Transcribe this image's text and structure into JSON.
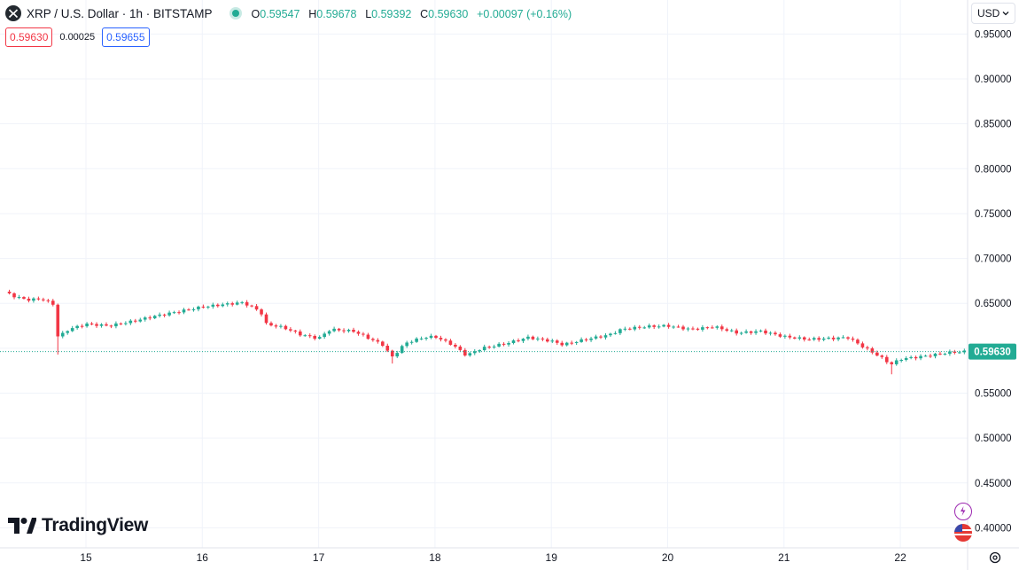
{
  "header": {
    "title": "XRP / U.S. Dollar · 1h · BITSTAMP",
    "o_label": "O",
    "o_value": "0.59547",
    "h_label": "H",
    "h_value": "0.59678",
    "l_label": "L",
    "l_value": "0.59392",
    "c_label": "C",
    "c_value": "0.59630",
    "change": "+0.00097 (+0.16%)",
    "sell_price": "0.59630",
    "spread": "0.00025",
    "buy_price": "0.59655"
  },
  "currency_selector": {
    "value": "USD"
  },
  "branding": {
    "logo_text": "TradingView"
  },
  "colors": {
    "up": "#22ab94",
    "down": "#f23645",
    "grid": "#f0f3fa",
    "price_line": "#22ab94"
  },
  "chart_data": {
    "type": "candlestick",
    "title": "XRP / U.S. Dollar · 1h · BITSTAMP",
    "x_tick_labels": [
      "15",
      "16",
      "17",
      "18",
      "19",
      "20",
      "21",
      "22"
    ],
    "y_tick_labels": [
      "0.95000",
      "0.90000",
      "0.85000",
      "0.80000",
      "0.75000",
      "0.70000",
      "0.65000",
      "0.60000",
      "0.55000",
      "0.50000",
      "0.45000",
      "0.40000"
    ],
    "ylim": [
      0.38,
      0.98
    ],
    "last_price": 0.5963,
    "last_price_label": "0.59630",
    "grid": true,
    "price_path": [
      [
        14.3,
        0.663
      ],
      [
        14.4,
        0.657
      ],
      [
        14.5,
        0.654
      ],
      [
        14.62,
        0.655
      ],
      [
        14.72,
        0.649
      ],
      [
        14.76,
        0.612
      ],
      [
        14.85,
        0.621
      ],
      [
        15.0,
        0.627
      ],
      [
        15.2,
        0.625
      ],
      [
        15.4,
        0.63
      ],
      [
        15.6,
        0.636
      ],
      [
        15.8,
        0.641
      ],
      [
        16.0,
        0.646
      ],
      [
        16.2,
        0.649
      ],
      [
        16.35,
        0.651
      ],
      [
        16.5,
        0.641
      ],
      [
        16.55,
        0.627
      ],
      [
        16.7,
        0.623
      ],
      [
        16.85,
        0.615
      ],
      [
        17.0,
        0.611
      ],
      [
        17.1,
        0.621
      ],
      [
        17.3,
        0.619
      ],
      [
        17.45,
        0.61
      ],
      [
        17.55,
        0.604
      ],
      [
        17.63,
        0.59
      ],
      [
        17.75,
        0.606
      ],
      [
        17.9,
        0.612
      ],
      [
        18.0,
        0.613
      ],
      [
        18.15,
        0.604
      ],
      [
        18.27,
        0.592
      ],
      [
        18.4,
        0.6
      ],
      [
        18.6,
        0.605
      ],
      [
        18.8,
        0.612
      ],
      [
        19.0,
        0.608
      ],
      [
        19.1,
        0.604
      ],
      [
        19.3,
        0.61
      ],
      [
        19.5,
        0.615
      ],
      [
        19.6,
        0.621
      ],
      [
        19.8,
        0.624
      ],
      [
        20.0,
        0.625
      ],
      [
        20.2,
        0.621
      ],
      [
        20.4,
        0.624
      ],
      [
        20.6,
        0.617
      ],
      [
        20.8,
        0.619
      ],
      [
        21.0,
        0.613
      ],
      [
        21.2,
        0.61
      ],
      [
        21.4,
        0.611
      ],
      [
        21.55,
        0.612
      ],
      [
        21.7,
        0.6
      ],
      [
        21.82,
        0.591
      ],
      [
        21.92,
        0.582
      ],
      [
        22.0,
        0.588
      ],
      [
        22.2,
        0.591
      ],
      [
        22.4,
        0.595
      ],
      [
        22.55,
        0.5963
      ]
    ],
    "spikes": [
      {
        "x": 14.76,
        "low": 0.593
      },
      {
        "x": 17.63,
        "low": 0.583
      },
      {
        "x": 21.92,
        "low": 0.571
      }
    ]
  }
}
